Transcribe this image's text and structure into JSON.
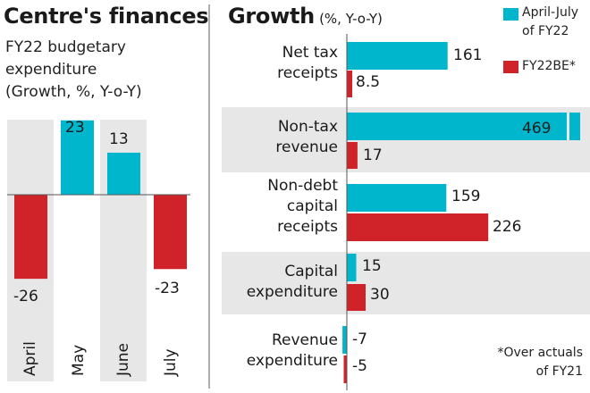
{
  "colors": {
    "teal": "#00b6cc",
    "red": "#cf2229",
    "band": "#e7e7e8",
    "axis": "#555555"
  },
  "chart_data": [
    {
      "type": "bar",
      "title": "Centre's finances",
      "subtitle_lines": [
        "FY22 budgetary",
        "expenditure",
        "(Growth, %, Y-o-Y)"
      ],
      "categories": [
        "April",
        "May",
        "June",
        "July"
      ],
      "values": [
        -26,
        23,
        13,
        -23
      ],
      "value_labels": [
        "-26",
        "23",
        "13",
        "-23"
      ],
      "orientation": "vertical",
      "grid": false
    },
    {
      "type": "bar",
      "title": "Growth",
      "title_suffix": "(%, Y-o-Y)",
      "orientation": "horizontal",
      "categories": [
        [
          "Net tax",
          "receipts"
        ],
        [
          "Non-tax",
          "revenue"
        ],
        [
          "Non-debt",
          "capital",
          "receipts"
        ],
        [
          "Capital",
          "expenditure"
        ],
        [
          "Revenue",
          "expenditure"
        ]
      ],
      "series": [
        {
          "name": "April-July of FY22",
          "legend_lines": [
            "April-July",
            "of FY22"
          ],
          "values": [
            161,
            469,
            159,
            15,
            -7
          ],
          "labels": [
            "161",
            "469",
            "159",
            "15",
            "-7"
          ]
        },
        {
          "name": "FY22BE*",
          "legend_lines": [
            "FY22BE*"
          ],
          "values": [
            8.5,
            17,
            226,
            30,
            -5
          ],
          "labels": [
            "8.5",
            "17",
            "226",
            "30",
            "-5"
          ]
        }
      ],
      "axis_break": {
        "category": "Non-tax revenue",
        "series": "April-July of FY22"
      },
      "footnote_lines": [
        "*Over actuals",
        "of FY21"
      ],
      "legend": "top-right",
      "grid": false
    }
  ]
}
